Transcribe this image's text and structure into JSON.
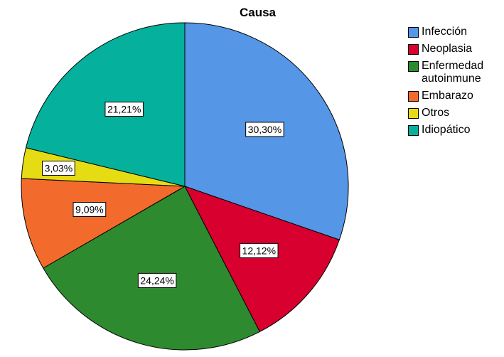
{
  "chart_data": {
    "type": "pie",
    "title": "Causa",
    "slices": [
      {
        "label": "Infección",
        "value": 30.3,
        "display": "30,30%",
        "color": "#5596e6"
      },
      {
        "label": "Neoplasia",
        "value": 12.12,
        "display": "12,12%",
        "color": "#d7002f"
      },
      {
        "label": "Enfermedad autoinmune",
        "value": 24.24,
        "display": "24,24%",
        "color": "#2e8a2e"
      },
      {
        "label": "Embarazo",
        "value": 9.09,
        "display": "9,09%",
        "color": "#f26b2c"
      },
      {
        "label": "Otros",
        "value": 3.03,
        "display": "3,03%",
        "color": "#e6dc13"
      },
      {
        "label": "Idiopático",
        "value": 21.21,
        "display": "21,21%",
        "color": "#05b09c"
      }
    ],
    "legend_position": "right",
    "start_angle": "12 o'clock",
    "direction": "clockwise"
  }
}
